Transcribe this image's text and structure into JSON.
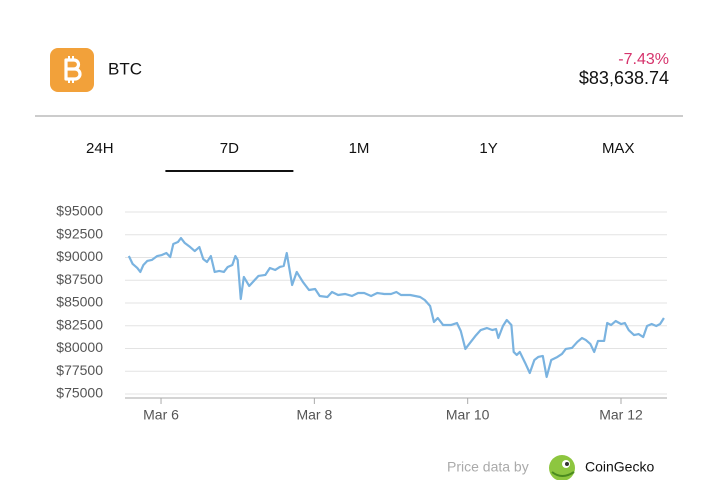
{
  "header": {
    "symbol": "BTC",
    "change": "-7.43%",
    "price": "$83,638.74"
  },
  "tabs": [
    {
      "label": "24H",
      "selected": false
    },
    {
      "label": "7D",
      "selected": true
    },
    {
      "label": "1M",
      "selected": false
    },
    {
      "label": "1Y",
      "selected": false
    },
    {
      "label": "MAX",
      "selected": false
    }
  ],
  "chart_data": {
    "type": "line",
    "x": [
      5.58,
      5.63,
      5.69,
      5.73,
      5.77,
      5.82,
      5.88,
      5.95,
      6.01,
      6.07,
      6.12,
      6.16,
      6.22,
      6.26,
      6.31,
      6.38,
      6.44,
      6.5,
      6.55,
      6.6,
      6.65,
      6.7,
      6.76,
      6.82,
      6.87,
      6.93,
      6.97,
      7.0,
      7.04,
      7.08,
      7.15,
      7.21,
      7.27,
      7.36,
      7.42,
      7.49,
      7.55,
      7.6,
      7.64,
      7.71,
      7.77,
      7.85,
      7.93,
      8.01,
      8.07,
      8.17,
      8.23,
      8.31,
      8.4,
      8.49,
      8.57,
      8.65,
      8.74,
      8.82,
      8.91,
      9.0,
      9.07,
      9.13,
      9.25,
      9.38,
      9.44,
      9.51,
      9.56,
      9.61,
      9.68,
      9.78,
      9.86,
      9.91,
      9.97,
      10.03,
      10.1,
      10.17,
      10.25,
      10.32,
      10.37,
      10.4,
      10.46,
      10.51,
      10.57,
      10.6,
      10.64,
      10.68,
      10.75,
      10.81,
      10.87,
      10.92,
      10.98,
      11.03,
      11.09,
      11.17,
      11.23,
      11.28,
      11.36,
      11.43,
      11.49,
      11.54,
      11.6,
      11.65,
      11.7,
      11.78,
      11.82,
      11.87,
      11.93,
      12.0,
      12.05,
      12.1,
      12.17,
      12.23,
      12.29,
      12.34,
      12.4,
      12.46,
      12.51,
      12.56
    ],
    "series": [
      {
        "color": "#7ab3e0",
        "values": [
          90160,
          89290,
          88850,
          88410,
          89180,
          89620,
          89730,
          90160,
          90270,
          90490,
          90050,
          91480,
          91700,
          92140,
          91590,
          91150,
          90710,
          91150,
          89840,
          89510,
          90160,
          88410,
          88520,
          88410,
          88960,
          89180,
          90160,
          89730,
          85440,
          87860,
          86870,
          87420,
          87970,
          88080,
          88850,
          88630,
          88960,
          89070,
          90490,
          86980,
          88410,
          87310,
          86430,
          86540,
          85770,
          85660,
          86210,
          85880,
          85990,
          85770,
          86100,
          86100,
          85770,
          86100,
          85990,
          85990,
          86210,
          85880,
          85880,
          85660,
          85330,
          84670,
          82910,
          83350,
          82580,
          82580,
          82800,
          81920,
          79950,
          80610,
          81370,
          82030,
          82250,
          82030,
          82140,
          81150,
          82470,
          83130,
          82580,
          79620,
          79290,
          79620,
          78410,
          77310,
          78740,
          79070,
          79180,
          76870,
          78740,
          79070,
          79400,
          79950,
          80060,
          80720,
          81150,
          80940,
          80500,
          79620,
          80830,
          80830,
          82800,
          82580,
          83020,
          82690,
          82800,
          82030,
          81480,
          81590,
          81260,
          82470,
          82690,
          82470,
          82690,
          83350
        ]
      }
    ],
    "xlim": [
      5.53,
      12.6
    ],
    "ylim": [
      75000,
      95000
    ],
    "xticks": [
      {
        "value": 6,
        "label": "Mar 6"
      },
      {
        "value": 8,
        "label": "Mar 8"
      },
      {
        "value": 10,
        "label": "Mar 10"
      },
      {
        "value": 12,
        "label": "Mar 12"
      }
    ],
    "yticks": [
      {
        "value": 75000,
        "label": "$75000"
      },
      {
        "value": 77500,
        "label": "$77500"
      },
      {
        "value": 80000,
        "label": "$80000"
      },
      {
        "value": 82500,
        "label": "$82500"
      },
      {
        "value": 85000,
        "label": "$85000"
      },
      {
        "value": 87500,
        "label": "$87500"
      },
      {
        "value": 90000,
        "label": "$90000"
      },
      {
        "value": 92500,
        "label": "$92500"
      },
      {
        "value": 95000,
        "label": "$95000"
      }
    ],
    "grid": true
  },
  "footer": {
    "attribution": "Price data by",
    "brand": "CoinGecko"
  }
}
